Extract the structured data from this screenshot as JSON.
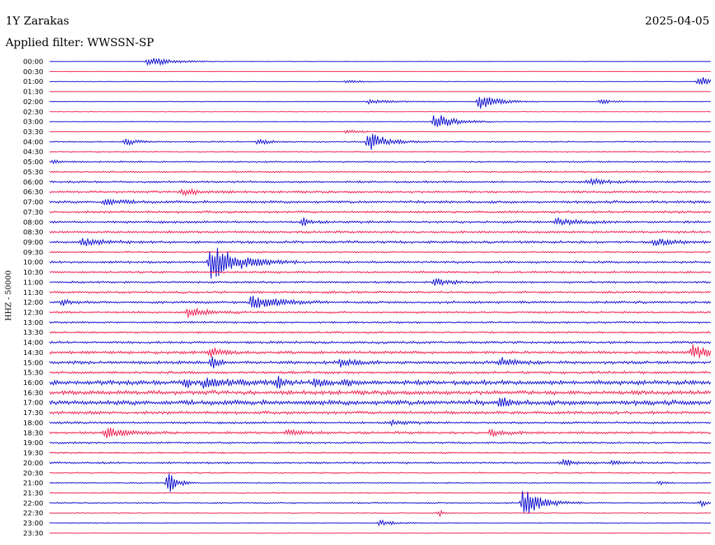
{
  "header": {
    "station": "1Y Zarakas",
    "date": "2025-04-05",
    "filter_label": "Applied filter: WWSSN-SP"
  },
  "colors": {
    "series_a": "#0000cc",
    "series_b": "#ee1144"
  },
  "chart_data": {
    "type": "line",
    "title": "1Y Zarakas",
    "ylabel": "HHZ - 50000",
    "row_labels": [
      "00:00",
      "00:30",
      "01:00",
      "01:30",
      "02:00",
      "02:30",
      "03:00",
      "03:30",
      "04:00",
      "04:30",
      "05:00",
      "05:30",
      "06:00",
      "06:30",
      "07:00",
      "07:30",
      "08:00",
      "08:30",
      "09:00",
      "09:30",
      "10:00",
      "10:30",
      "11:00",
      "11:30",
      "12:00",
      "12:30",
      "13:00",
      "13:30",
      "14:00",
      "14:30",
      "15:00",
      "15:30",
      "16:00",
      "16:30",
      "17:00",
      "17:30",
      "18:00",
      "18:30",
      "19:00",
      "19:30",
      "20:00",
      "20:30",
      "21:00",
      "21:30",
      "22:00",
      "22:30",
      "23:00",
      "23:30"
    ],
    "row_minutes": 30,
    "noise_level": [
      0.4,
      0.3,
      0.4,
      0.3,
      0.5,
      0.4,
      0.5,
      0.4,
      0.8,
      0.7,
      0.9,
      1.0,
      1.2,
      1.3,
      1.5,
      1.4,
      1.4,
      1.3,
      1.5,
      1.0,
      1.3,
      1.2,
      1.2,
      1.3,
      1.4,
      1.2,
      1.2,
      1.1,
      1.4,
      1.7,
      1.8,
      1.5,
      2.6,
      2.4,
      2.8,
      1.8,
      1.3,
      1.4,
      1.1,
      1.0,
      1.1,
      0.8,
      0.7,
      0.7,
      0.8,
      0.6,
      0.6,
      0.4
    ],
    "events": [
      {
        "row": 0,
        "minute": 4.5,
        "amplitude": 7,
        "duration": 1.5
      },
      {
        "row": 2,
        "minute": 29.5,
        "amplitude": 10,
        "duration": 0.6
      },
      {
        "row": 2,
        "minute": 13.5,
        "amplitude": 2,
        "duration": 1
      },
      {
        "row": 4,
        "minute": 19.5,
        "amplitude": 11,
        "duration": 1.2
      },
      {
        "row": 4,
        "minute": 14.5,
        "amplitude": 3,
        "duration": 1.5
      },
      {
        "row": 4,
        "minute": 25,
        "amplitude": 3,
        "duration": 1
      },
      {
        "row": 6,
        "minute": 17.5,
        "amplitude": 14,
        "duration": 1.2
      },
      {
        "row": 8,
        "minute": 14.5,
        "amplitude": 14,
        "duration": 1.2
      },
      {
        "row": 8,
        "minute": 3.5,
        "amplitude": 5,
        "duration": 0.8
      },
      {
        "row": 8,
        "minute": 9.5,
        "amplitude": 4,
        "duration": 0.8
      },
      {
        "row": 7,
        "minute": 13.5,
        "amplitude": 3,
        "duration": 1
      },
      {
        "row": 10,
        "minute": 0.2,
        "amplitude": 3,
        "duration": 0.5
      },
      {
        "row": 12,
        "minute": 24.5,
        "amplitude": 5,
        "duration": 1.2
      },
      {
        "row": 13,
        "minute": 6,
        "amplitude": 4,
        "duration": 1.5
      },
      {
        "row": 14,
        "minute": 2.5,
        "amplitude": 5,
        "duration": 1.2
      },
      {
        "row": 16,
        "minute": 11.5,
        "amplitude": 6,
        "duration": 0.6
      },
      {
        "row": 16,
        "minute": 23,
        "amplitude": 5,
        "duration": 1.5
      },
      {
        "row": 18,
        "minute": 1.5,
        "amplitude": 5,
        "duration": 1.5
      },
      {
        "row": 18,
        "minute": 27.5,
        "amplitude": 5,
        "duration": 1.2
      },
      {
        "row": 20,
        "minute": 7.3,
        "amplitude": 30,
        "duration": 1.8
      },
      {
        "row": 22,
        "minute": 17.5,
        "amplitude": 5,
        "duration": 1
      },
      {
        "row": 24,
        "minute": 9.2,
        "amplitude": 12,
        "duration": 1.6
      },
      {
        "row": 24,
        "minute": 0.6,
        "amplitude": 5,
        "duration": 0.6
      },
      {
        "row": 25,
        "minute": 6.3,
        "amplitude": 8,
        "duration": 1.2
      },
      {
        "row": 29,
        "minute": 7.3,
        "amplitude": 7,
        "duration": 1
      },
      {
        "row": 29,
        "minute": 29.2,
        "amplitude": 10,
        "duration": 1.2
      },
      {
        "row": 30,
        "minute": 7.4,
        "amplitude": 10,
        "duration": 0.4
      },
      {
        "row": 30,
        "minute": 13.2,
        "amplitude": 6,
        "duration": 1
      },
      {
        "row": 30,
        "minute": 20.5,
        "amplitude": 7,
        "duration": 1
      },
      {
        "row": 32,
        "minute": 10.4,
        "amplitude": 11,
        "duration": 0.3
      },
      {
        "row": 32,
        "minute": 12.1,
        "amplitude": 9,
        "duration": 0.5
      },
      {
        "row": 32,
        "minute": 13.4,
        "amplitude": 8,
        "duration": 0.3
      },
      {
        "row": 32,
        "minute": 6.2,
        "amplitude": 8,
        "duration": 0.4
      },
      {
        "row": 32,
        "minute": 7,
        "amplitude": 6,
        "duration": 2
      },
      {
        "row": 34,
        "minute": 20.5,
        "amplitude": 8,
        "duration": 0.5
      },
      {
        "row": 36,
        "minute": 15.5,
        "amplitude": 4,
        "duration": 1
      },
      {
        "row": 37,
        "minute": 2.5,
        "amplitude": 8,
        "duration": 1.5
      },
      {
        "row": 37,
        "minute": 10.8,
        "amplitude": 4,
        "duration": 1
      },
      {
        "row": 37,
        "minute": 20,
        "amplitude": 5,
        "duration": 1
      },
      {
        "row": 40,
        "minute": 23.3,
        "amplitude": 5,
        "duration": 0.8
      },
      {
        "row": 40,
        "minute": 25.5,
        "amplitude": 3,
        "duration": 1
      },
      {
        "row": 42,
        "minute": 5.4,
        "amplitude": 16,
        "duration": 0.6
      },
      {
        "row": 42,
        "minute": 27.7,
        "amplitude": 3,
        "duration": 0.3
      },
      {
        "row": 44,
        "minute": 21.5,
        "amplitude": 22,
        "duration": 1.2
      },
      {
        "row": 44,
        "minute": 29.6,
        "amplitude": 4,
        "duration": 0.4
      },
      {
        "row": 45,
        "minute": 17.7,
        "amplitude": 5,
        "duration": 0.3
      },
      {
        "row": 46,
        "minute": 15,
        "amplitude": 4,
        "duration": 1
      }
    ]
  }
}
